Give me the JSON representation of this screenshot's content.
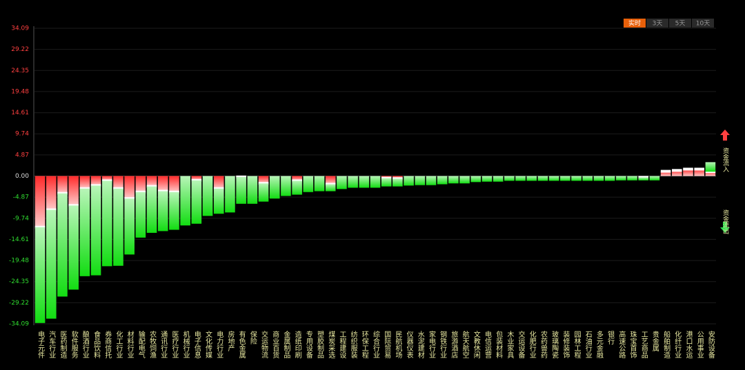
{
  "chart_data": {
    "type": "stacked_bar",
    "tabs": [
      "实时",
      "3天",
      "5天",
      "10天"
    ],
    "active_tab": 0,
    "categories": [
      "电子元件",
      "汽车行业",
      "医药制造",
      "软件服务",
      "酿酒行业",
      "食品饮料",
      "券商信托",
      "化工行业",
      "材料行业",
      "输配电气",
      "农牧饲渔",
      "通讯行业",
      "医疗行业",
      "机械行业",
      "电子信息",
      "文化传媒",
      "电力行业",
      "房地产",
      "有色金属",
      "保险",
      "交运物流",
      "商业百货",
      "金属制品",
      "造纸印刷",
      "专用设备",
      "塑胶制品",
      "煤炭采选",
      "工程建设",
      "纺织服装",
      "环保工程",
      "综合行业",
      "国际贸易",
      "民航机场",
      "仪器仪表",
      "水泥建材",
      "家电行业",
      "钢铁行业",
      "旅游酒店",
      "航天航空",
      "文教休闲",
      "电信运营",
      "包装材料",
      "木业家具",
      "交运设备",
      "化肥行业",
      "农药兽药",
      "玻璃陶瓷",
      "装修装饰",
      "园林工程",
      "石油行业",
      "多元金融",
      "银行",
      "高速公路",
      "珠宝首饰",
      "工艺商品",
      "贵金属",
      "船舶制造",
      "化纤行业",
      "港口水运",
      "公用事业",
      "安防设备"
    ],
    "series": [
      {
        "name": "资金流入",
        "color": "#ff2a2a",
        "values": [
          -11.8,
          -7.8,
          -4.0,
          -6.8,
          -2.9,
          -2.2,
          -1.1,
          -2.9,
          -5.2,
          -3.7,
          -2.4,
          -3.5,
          -3.7,
          0,
          -1.0,
          0,
          -2.9,
          0,
          -0.2,
          0,
          -1.7,
          0,
          0,
          -1.1,
          0,
          0,
          -1.9,
          0,
          0,
          0,
          0,
          -0.5,
          -0.6,
          0,
          0,
          0,
          0,
          0,
          0,
          0,
          0,
          0,
          0,
          0,
          0,
          0,
          0,
          0,
          0,
          0,
          0,
          0,
          0,
          0,
          -0.3,
          0,
          1.1,
          1.3,
          1.6,
          1.6,
          1.0
        ]
      },
      {
        "name": "资金流出",
        "color": "#12dd12",
        "values": [
          -22.1,
          -25.1,
          -23.8,
          -19.4,
          -20.2,
          -20.7,
          -19.7,
          -17.8,
          -12.9,
          -10.5,
          -10.7,
          -9.2,
          -8.7,
          -11.4,
          -10.0,
          -9.2,
          -5.8,
          -8.4,
          -6.2,
          -6.4,
          -4.2,
          -5.2,
          -4.6,
          -3.2,
          -3.7,
          -3.5,
          -1.6,
          -3.0,
          -2.7,
          -2.7,
          -2.7,
          -1.9,
          -1.8,
          -2.2,
          -2.1,
          -2.1,
          -1.9,
          -1.7,
          -1.7,
          -1.4,
          -1.3,
          -1.3,
          -1.1,
          -1.1,
          -1.1,
          -1.1,
          -1.1,
          -1.1,
          -1.1,
          -1.1,
          -1.1,
          -1.1,
          -1.0,
          -1.0,
          -0.7,
          -1.0,
          0,
          0,
          0,
          0,
          2.2
        ]
      }
    ],
    "ylim": [
      -34.09,
      34.09
    ],
    "yticks": [
      34.09,
      29.22,
      24.35,
      19.48,
      14.61,
      9.74,
      4.87,
      {
        "value": 0,
        "label": "0.00"
      },
      -4.87,
      -9.74,
      -14.61,
      -19.48,
      -24.35,
      -29.22,
      -34.09
    ],
    "grid": true
  }
}
